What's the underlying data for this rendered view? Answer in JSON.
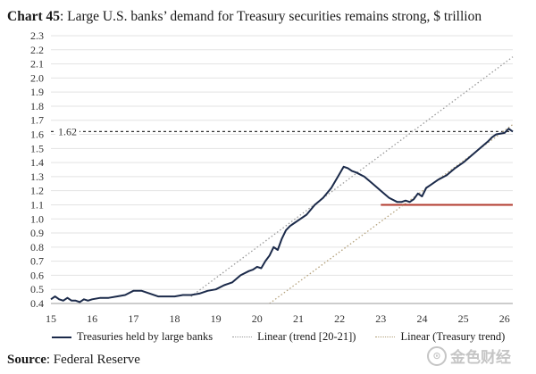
{
  "chart_data": {
    "type": "line",
    "title": {
      "label": "Chart 45",
      "text": ": Large U.S. banks’ demand for Treasury securities remains strong, $ trillion"
    },
    "xlabel": "",
    "ylabel": "",
    "x_ticks": [
      "15",
      "16",
      "17",
      "18",
      "19",
      "20",
      "21",
      "22",
      "23",
      "24",
      "25",
      "26"
    ],
    "xlim": [
      15,
      26.2
    ],
    "y_ticks": [
      "0.4",
      "0.5",
      "0.6",
      "0.7",
      "0.8",
      "0.9",
      "1.0",
      "1.1",
      "1.2",
      "1.3",
      "1.4",
      "1.5",
      "1.6",
      "1.7",
      "1.8",
      "1.9",
      "2.0",
      "2.1",
      "2.2",
      "2.3"
    ],
    "ylim": [
      0.4,
      2.3
    ],
    "grid": "horizontal",
    "series": [
      {
        "name": "Treasuries held by large banks",
        "color": "#1b2a4a",
        "style": "solid",
        "x": [
          15.0,
          15.1,
          15.2,
          15.3,
          15.4,
          15.5,
          15.6,
          15.7,
          15.8,
          15.9,
          16.0,
          16.2,
          16.4,
          16.6,
          16.8,
          17.0,
          17.2,
          17.4,
          17.6,
          17.8,
          18.0,
          18.2,
          18.4,
          18.6,
          18.8,
          19.0,
          19.2,
          19.4,
          19.6,
          19.8,
          19.9,
          20.0,
          20.1,
          20.2,
          20.3,
          20.4,
          20.5,
          20.6,
          20.7,
          20.8,
          20.9,
          21.0,
          21.2,
          21.4,
          21.6,
          21.8,
          22.0,
          22.1,
          22.2,
          22.3,
          22.4,
          22.6,
          22.8,
          23.0,
          23.2,
          23.4,
          23.5,
          23.6,
          23.7,
          23.8,
          23.9,
          24.0,
          24.1,
          24.2,
          24.4,
          24.6,
          24.8,
          25.0,
          25.2,
          25.4,
          25.6,
          25.7,
          25.8,
          26.0,
          26.1,
          26.2
        ],
        "values": [
          0.43,
          0.45,
          0.43,
          0.42,
          0.44,
          0.42,
          0.42,
          0.41,
          0.43,
          0.42,
          0.43,
          0.44,
          0.44,
          0.45,
          0.46,
          0.49,
          0.49,
          0.47,
          0.45,
          0.45,
          0.45,
          0.46,
          0.46,
          0.47,
          0.49,
          0.5,
          0.53,
          0.55,
          0.6,
          0.63,
          0.64,
          0.66,
          0.65,
          0.7,
          0.74,
          0.8,
          0.78,
          0.86,
          0.92,
          0.95,
          0.97,
          0.99,
          1.03,
          1.1,
          1.15,
          1.22,
          1.32,
          1.37,
          1.36,
          1.34,
          1.33,
          1.3,
          1.25,
          1.2,
          1.15,
          1.12,
          1.12,
          1.13,
          1.12,
          1.14,
          1.18,
          1.16,
          1.22,
          1.24,
          1.28,
          1.31,
          1.36,
          1.4,
          1.45,
          1.5,
          1.55,
          1.58,
          1.6,
          1.61,
          1.64,
          1.62
        ]
      },
      {
        "name": "Linear (trend [20-21])",
        "color": "#9a9a9a",
        "style": "dotted",
        "x": [
          18.4,
          26.2
        ],
        "values": [
          0.45,
          2.15
        ]
      },
      {
        "name": "Linear (Treasury trend)",
        "color": "#b3a07a",
        "style": "dotted",
        "x": [
          20.3,
          26.2
        ],
        "values": [
          0.4,
          1.67
        ]
      }
    ],
    "reference_lines": [
      {
        "name": "1.62",
        "value": 1.62,
        "color": "#333333",
        "style": "dashed",
        "label": "1.62"
      },
      {
        "name": "",
        "value": 1.1,
        "x_start": 23.0,
        "x_end": 26.2,
        "color": "#b23a2e",
        "style": "solid",
        "label": ""
      }
    ],
    "legend_position": "bottom"
  },
  "source": {
    "label": "Source",
    "text": ": Federal Reserve"
  },
  "watermark": {
    "logo_char": "⊙",
    "text": "金色财经"
  }
}
